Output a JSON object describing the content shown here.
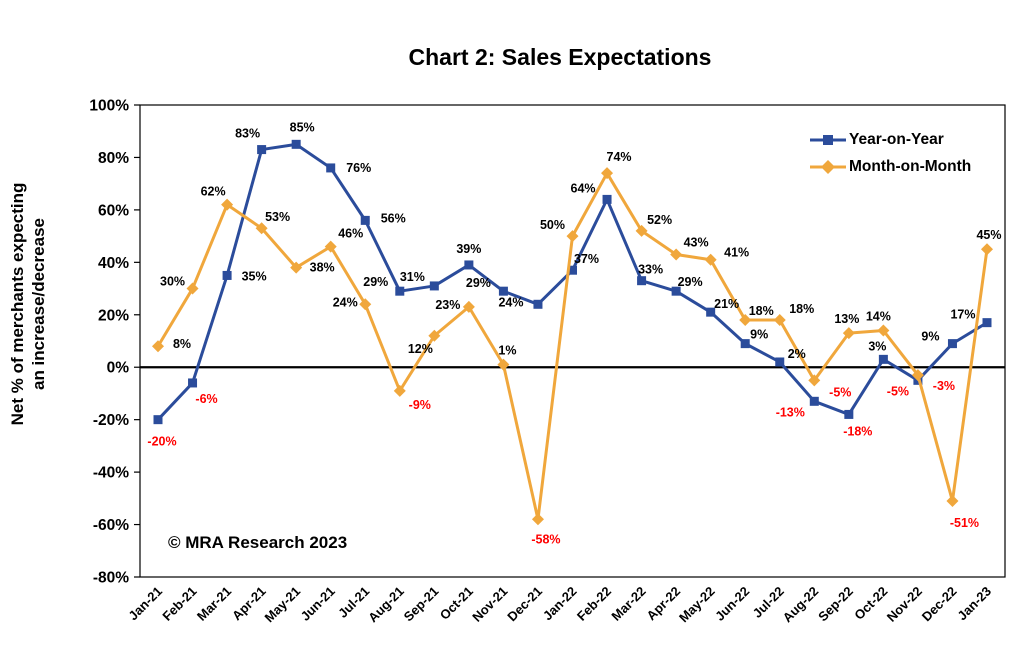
{
  "chart": {
    "title": "Chart 2: Sales Expectations",
    "ylabel_line1": "Net % of merchants expecting",
    "ylabel_line2": "an increase/decrease",
    "copyright": "© MRA Research 2023"
  },
  "chart_data": {
    "type": "line",
    "title": "Chart 2: Sales Expectations",
    "ylabel": "Net % of merchants expecting an increase/decrease",
    "xlabel": "",
    "ylim": [
      -80,
      100
    ],
    "ytick_step": 20,
    "ytick_format": "percent",
    "grid": false,
    "legend_position": "top-right",
    "data_labels": true,
    "positive_label_color": "#000000",
    "negative_label_color": "#ff0000",
    "zero_line_color": "#000000",
    "annotations": [
      "© MRA Research 2023"
    ],
    "categories": [
      "Jan-21",
      "Feb-21",
      "Mar-21",
      "Apr-21",
      "May-21",
      "Jun-21",
      "Jul-21",
      "Aug-21",
      "Sep-21",
      "Oct-21",
      "Nov-21",
      "Dec-21",
      "Jan-22",
      "Feb-22",
      "Mar-22",
      "Apr-22",
      "May-22",
      "Jun-22",
      "Jul-22",
      "Aug-22",
      "Sep-22",
      "Oct-22",
      "Nov-22",
      "Dec-22",
      "Jan-23"
    ],
    "series": [
      {
        "name": "Year-on-Year",
        "color": "#2b4c9b",
        "marker": "square",
        "values": [
          -20,
          -6,
          35,
          83,
          85,
          76,
          56,
          29,
          31,
          39,
          29,
          24,
          37,
          64,
          33,
          29,
          21,
          9,
          2,
          -13,
          -18,
          3,
          -5,
          9,
          17
        ]
      },
      {
        "name": "Month-on-Month",
        "color": "#f0a73c",
        "marker": "diamond",
        "values": [
          8,
          30,
          62,
          53,
          38,
          46,
          24,
          -9,
          12,
          23,
          1,
          -58,
          50,
          74,
          52,
          43,
          41,
          18,
          18,
          -5,
          13,
          14,
          -3,
          -51,
          45
        ]
      }
    ]
  }
}
